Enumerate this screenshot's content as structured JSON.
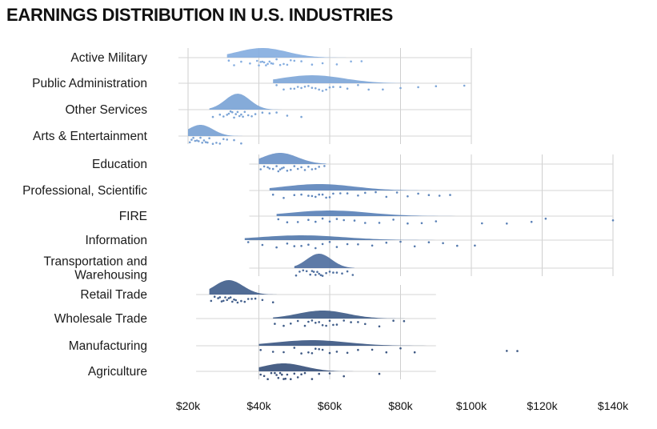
{
  "chart_data": {
    "type": "raincloud",
    "title": "EARNINGS DISTRIBUTION IN U.S. INDUSTRIES",
    "xlabel": "",
    "ylabel": "",
    "x_axis": {
      "min": 20000,
      "max": 140000,
      "ticks": [
        {
          "value": 20000,
          "label": "$20k"
        },
        {
          "value": 40000,
          "label": "$40k"
        },
        {
          "value": 60000,
          "label": "$60k"
        },
        {
          "value": 80000,
          "label": "$80k"
        },
        {
          "value": 100000,
          "label": "$100k"
        },
        {
          "value": 120000,
          "label": "$120k"
        },
        {
          "value": 140000,
          "label": "$140k"
        }
      ]
    },
    "grid": true,
    "groups": [
      {
        "min": 20000,
        "max": 100000,
        "industries": [
          "Active Military",
          "Public Administration",
          "Other Services",
          "Arts & Entertainment"
        ],
        "color": "#7fa7d8"
      },
      {
        "min": 40000,
        "max": 140000,
        "industries": [
          "Education",
          "Professional, Scientific",
          "FIRE",
          "Information",
          "Transportation and Warehousing"
        ],
        "color": "#5f86bd"
      },
      {
        "min": 25000,
        "max": 90000,
        "industries": [
          "Retail Trade",
          "Wholesale Trade",
          "Manufacturing",
          "Agriculture"
        ],
        "color": "#3e5a85"
      }
    ],
    "series": [
      {
        "name": "Active Military",
        "label_lines": [
          "Active Military"
        ],
        "color": "#86aee0",
        "range": [
          31000,
          70000
        ],
        "peak": 41000,
        "spread": 7000,
        "height": 12,
        "points": [
          31500,
          33000,
          35000,
          37500,
          39500,
          40000,
          40500,
          41000,
          41500,
          42000,
          42500,
          43000,
          43500,
          44000,
          45000,
          46000,
          47000,
          48000,
          49000,
          50000,
          52000,
          55000,
          58000,
          62000,
          66000,
          69000
        ]
      },
      {
        "name": "Public Administration",
        "label_lines": [
          "Public Administration"
        ],
        "color": "#7fa7d8",
        "range": [
          44000,
          99000
        ],
        "peak": 55000,
        "spread": 9000,
        "height": 10,
        "points": [
          45000,
          47000,
          49000,
          50000,
          51000,
          52000,
          53000,
          54000,
          55000,
          56000,
          57000,
          58000,
          59000,
          60000,
          61000,
          63000,
          65000,
          68000,
          71000,
          75000,
          80000,
          85000,
          90000,
          98000
        ]
      },
      {
        "name": "Other Services",
        "label_lines": [
          "Other Services"
        ],
        "color": "#7ba4d6",
        "range": [
          26000,
          80000
        ],
        "peak": 34000,
        "spread": 3500,
        "height": 20,
        "points": [
          27000,
          29000,
          30000,
          31000,
          31500,
          32000,
          32500,
          33000,
          33500,
          34000,
          34500,
          35000,
          35500,
          36000,
          37000,
          38000,
          39000,
          41000,
          43000,
          45000,
          48000,
          52000
        ]
      },
      {
        "name": "Arts & Entertainment",
        "label_lines": [
          "Arts & Entertainment"
        ],
        "color": "#7aa2d4",
        "range": [
          20000,
          37500
        ],
        "peak": 23500,
        "spread": 3500,
        "height": 14,
        "points": [
          20500,
          21000,
          21500,
          22000,
          22500,
          23000,
          23500,
          24000,
          24500,
          25000,
          25500,
          26000,
          27000,
          28000,
          29000,
          30000,
          31000,
          33000,
          35000
        ]
      },
      {
        "name": "Education",
        "label_lines": [
          "Education"
        ],
        "color": "#6b93c8",
        "range": [
          40000,
          59000
        ],
        "peak": 46000,
        "spread": 5000,
        "height": 14,
        "points": [
          40500,
          41500,
          42500,
          43000,
          44000,
          45000,
          45500,
          46000,
          46500,
          47000,
          48000,
          49000,
          50000,
          51000,
          52000,
          53000,
          54000,
          55000,
          56000,
          57000,
          58500
        ]
      },
      {
        "name": "Professional, Scientific",
        "label_lines": [
          "Professional, Scientific"
        ],
        "color": "#5e86bc",
        "range": [
          43000,
          96000
        ],
        "peak": 57000,
        "spread": 10000,
        "height": 8,
        "points": [
          44000,
          47000,
          50000,
          52000,
          54000,
          55000,
          56000,
          57000,
          58000,
          59000,
          60000,
          61000,
          63000,
          65000,
          68000,
          70000,
          73000,
          76000,
          79000,
          82000,
          85000,
          88000,
          91000,
          94000
        ]
      },
      {
        "name": "FIRE",
        "label_lines": [
          "FIRE"
        ],
        "color": "#5a81b7",
        "range": [
          45000,
          140000
        ],
        "peak": 60000,
        "spread": 11000,
        "height": 7,
        "points": [
          45500,
          48000,
          51000,
          54000,
          56000,
          58000,
          60000,
          62000,
          64000,
          67000,
          70000,
          74000,
          78000,
          82000,
          86000,
          90000,
          103000,
          110000,
          117000,
          121000,
          140000
        ]
      },
      {
        "name": "Information",
        "label_lines": [
          "Information"
        ],
        "color": "#5479ad",
        "range": [
          36000,
          102000
        ],
        "peak": 52000,
        "spread": 12000,
        "height": 6,
        "points": [
          37000,
          41000,
          45000,
          48000,
          50000,
          52000,
          54000,
          56000,
          58000,
          60000,
          62000,
          65000,
          68000,
          72000,
          76000,
          80000,
          84000,
          88000,
          92000,
          96000,
          101000
        ]
      },
      {
        "name": "Transportation and Warehousing",
        "label_lines": [
          "Transportation and",
          "Warehousing"
        ],
        "color": "#4f6f9f",
        "range": [
          50000,
          67000
        ],
        "peak": 57000,
        "spread": 3500,
        "height": 18,
        "points": [
          50500,
          51500,
          52500,
          53500,
          54500,
          55000,
          55500,
          56000,
          56500,
          57000,
          57500,
          58000,
          59000,
          60000,
          61000,
          62000,
          63500,
          65000,
          66500
        ]
      },
      {
        "name": "Retail Trade",
        "label_lines": [
          "Retail Trade"
        ],
        "color": "#425f8c",
        "range": [
          26000,
          45000
        ],
        "peak": 31500,
        "spread": 4000,
        "height": 18,
        "points": [
          26500,
          27500,
          28500,
          29000,
          29500,
          30000,
          30500,
          31000,
          31500,
          32000,
          32500,
          33000,
          33500,
          34000,
          35000,
          36000,
          37000,
          38000,
          39000,
          41000,
          44000
        ]
      },
      {
        "name": "Wholesale Trade",
        "label_lines": [
          "Wholesale Trade"
        ],
        "color": "#3f5c88",
        "range": [
          44000,
          82000
        ],
        "peak": 58000,
        "spread": 7000,
        "height": 10,
        "points": [
          44500,
          47000,
          49000,
          51000,
          53000,
          54000,
          55000,
          56000,
          57000,
          58000,
          59000,
          60000,
          61000,
          62000,
          64000,
          66000,
          68000,
          70000,
          74000,
          78000,
          81000
        ]
      },
      {
        "name": "Manufacturing",
        "label_lines": [
          "Manufacturing"
        ],
        "color": "#3d5883",
        "range": [
          40000,
          113000
        ],
        "peak": 55000,
        "spread": 10000,
        "height": 7,
        "points": [
          40500,
          44000,
          47000,
          50000,
          52000,
          54000,
          55000,
          56000,
          57000,
          58000,
          60000,
          62000,
          65000,
          68000,
          72000,
          76000,
          80000,
          84000,
          110000,
          113000
        ]
      },
      {
        "name": "Agriculture",
        "label_lines": [
          "Agriculture"
        ],
        "color": "#3a527c",
        "range": [
          40000,
          75000
        ],
        "peak": 47000,
        "spread": 6000,
        "height": 10,
        "points": [
          40500,
          41500,
          42500,
          43500,
          44500,
          45000,
          45500,
          46000,
          46500,
          47000,
          47500,
          48000,
          49000,
          50000,
          51000,
          52000,
          53000,
          55000,
          57000,
          60000,
          64000,
          74000
        ]
      }
    ]
  }
}
